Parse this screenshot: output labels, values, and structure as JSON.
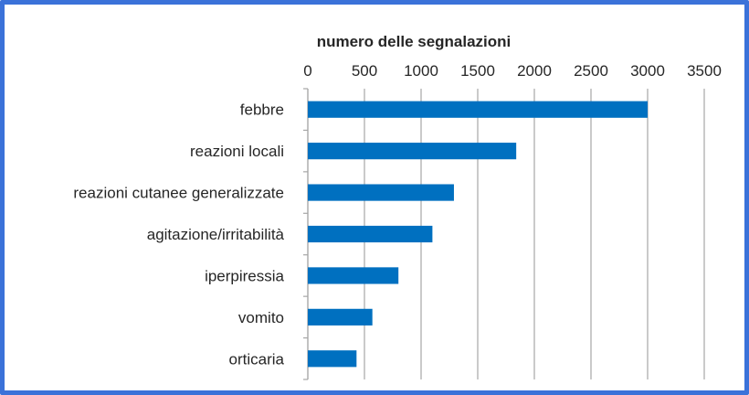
{
  "chart_data": {
    "type": "bar",
    "orientation": "horizontal",
    "title": "",
    "xlabel": "numero delle segnalazioni",
    "ylabel": "",
    "xlim": [
      0,
      3500
    ],
    "ticks": [
      0,
      500,
      1000,
      1500,
      2000,
      2500,
      3000,
      3500
    ],
    "tick_labels": [
      "0",
      "500",
      "1000",
      "1500",
      "2000",
      "2500",
      "3000",
      "3500"
    ],
    "x_axis_position": "top",
    "grid": true,
    "categories": [
      "febbre",
      "reazioni locali",
      "reazioni cutanee generalizzate",
      "agitazione/irritabilità",
      "iperpiressia",
      "vomito",
      "orticaria"
    ],
    "values": [
      3000,
      1840,
      1290,
      1100,
      800,
      570,
      430
    ],
    "bar_color": "#0070c0"
  },
  "colors": {
    "frame": "#3b72d9",
    "grid": "#a6a6a6"
  }
}
